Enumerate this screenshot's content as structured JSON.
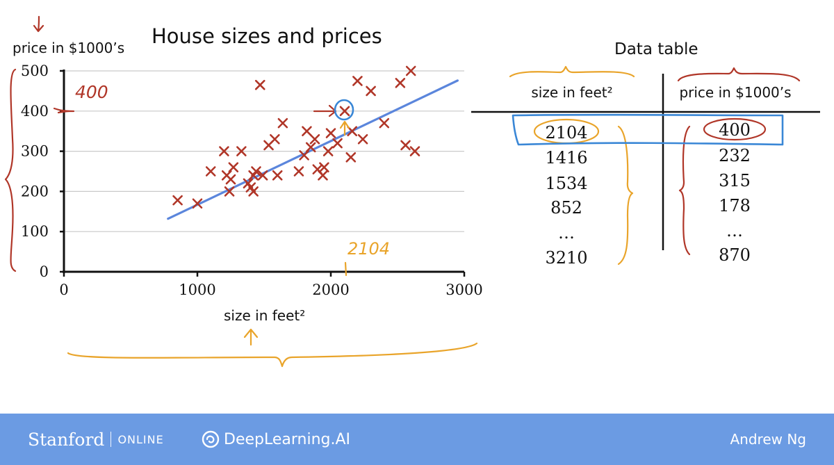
{
  "slide": {
    "chart_title": "House sizes and prices",
    "y_axis_label": "price in $1000’s",
    "x_axis_label": "size in feet²",
    "table_title": "Data table",
    "annotations": {
      "y_highlight": "400",
      "x_highlight": "2104"
    }
  },
  "chart_data": [
    {
      "type": "scatter",
      "title": "House sizes and prices",
      "xlabel": "size in feet²",
      "ylabel": "price in $1000’s",
      "xlim": [
        0,
        3000
      ],
      "ylim": [
        0,
        500
      ],
      "xticks": [
        0,
        1000,
        2000,
        3000
      ],
      "yticks": [
        0,
        100,
        200,
        300,
        400,
        500
      ],
      "grid": true,
      "points": [
        [
          852,
          178
        ],
        [
          1000,
          170
        ],
        [
          1100,
          250
        ],
        [
          1200,
          300
        ],
        [
          1220,
          240
        ],
        [
          1240,
          200
        ],
        [
          1250,
          230
        ],
        [
          1270,
          260
        ],
        [
          1330,
          300
        ],
        [
          1380,
          220
        ],
        [
          1400,
          210
        ],
        [
          1420,
          200
        ],
        [
          1420,
          240
        ],
        [
          1440,
          250
        ],
        [
          1470,
          465
        ],
        [
          1490,
          240
        ],
        [
          1534,
          315
        ],
        [
          1580,
          330
        ],
        [
          1600,
          240
        ],
        [
          1640,
          370
        ],
        [
          1760,
          250
        ],
        [
          1800,
          290
        ],
        [
          1820,
          350
        ],
        [
          1850,
          310
        ],
        [
          1880,
          330
        ],
        [
          1900,
          255
        ],
        [
          1940,
          240
        ],
        [
          1950,
          260
        ],
        [
          1980,
          300
        ],
        [
          2000,
          345
        ],
        [
          2050,
          320
        ],
        [
          2104,
          400
        ],
        [
          2150,
          285
        ],
        [
          2160,
          350
        ],
        [
          2200,
          475
        ],
        [
          2240,
          330
        ],
        [
          2300,
          450
        ],
        [
          2400,
          370
        ],
        [
          2520,
          470
        ],
        [
          2560,
          315
        ],
        [
          2600,
          500
        ],
        [
          2630,
          300
        ]
      ],
      "fit_line": {
        "x": [
          780,
          2950
        ],
        "y": [
          132,
          476
        ]
      },
      "highlight_point": [
        2104,
        400
      ]
    },
    {
      "type": "table",
      "title": "Data table",
      "columns": [
        "size in feet²",
        "price in $1000’s"
      ],
      "rows": [
        [
          "2104",
          "400"
        ],
        [
          "1416",
          "232"
        ],
        [
          "1534",
          "315"
        ],
        [
          "852",
          "178"
        ],
        [
          "…",
          "…"
        ],
        [
          "3210",
          "870"
        ]
      ]
    }
  ],
  "footer": {
    "stanford": "Stanford",
    "online": "ONLINE",
    "deeplearning": "DeepLearning.AI",
    "author": "Andrew Ng",
    "background": "#6b9be3"
  },
  "colors": {
    "marker": "#b03628",
    "fit_line": "#5b86dc",
    "annotation_red": "#b03628",
    "annotation_orange": "#e9a42a",
    "annotation_blue": "#3a87d6"
  }
}
